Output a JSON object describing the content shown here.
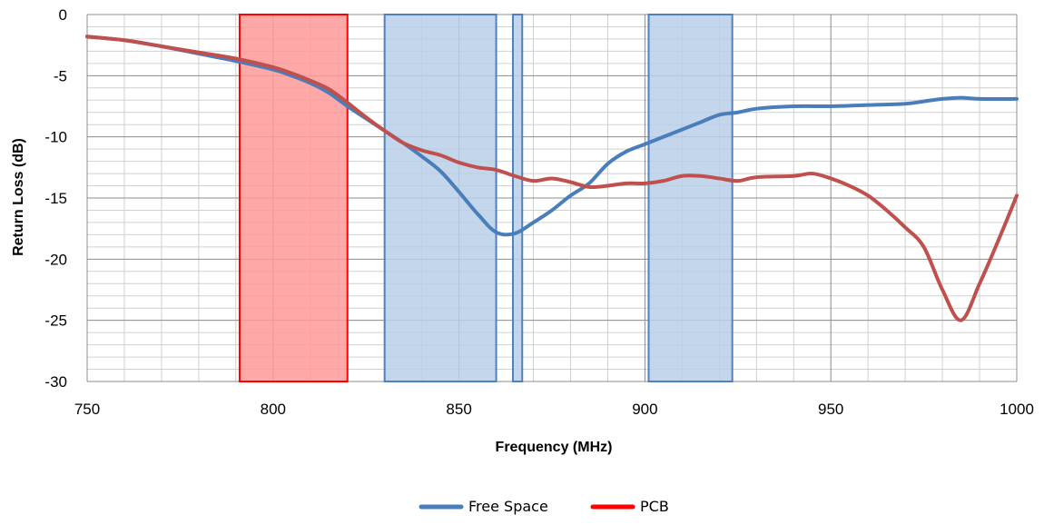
{
  "chart_data": {
    "type": "line",
    "title": "",
    "xlabel": "Frequency (MHz)",
    "ylabel": "Return Loss (dB)",
    "xlim": [
      750,
      1000
    ],
    "ylim": [
      -30,
      0
    ],
    "x_ticks": [
      750,
      800,
      850,
      900,
      950,
      1000
    ],
    "y_ticks": [
      0,
      -5,
      -10,
      -15,
      -20,
      -25,
      -30
    ],
    "x_tick_labels": [
      "750",
      "800",
      "850",
      "900",
      "950",
      "1000"
    ],
    "y_tick_labels": [
      "0",
      "-5",
      "-10",
      "-15",
      "-20",
      "-25",
      "-30"
    ],
    "grid": true,
    "legend_position": "bottom",
    "bands": [
      {
        "x_start": 791,
        "x_end": 820,
        "color": "#ff0000",
        "fill": "#ff9999"
      },
      {
        "x_start": 830,
        "x_end": 860,
        "color": "#4f81bd",
        "fill": "#b8cfe8"
      },
      {
        "x_start": 864.5,
        "x_end": 867,
        "color": "#4f81bd",
        "fill": "#b8cfe8"
      },
      {
        "x_start": 901,
        "x_end": 923.5,
        "color": "#4f81bd",
        "fill": "#b8cfe8"
      }
    ],
    "series": [
      {
        "name": "Free Space",
        "color": "#4a7ebb",
        "x": [
          750,
          760,
          770,
          780,
          790,
          800,
          805,
          810,
          815,
          820,
          825,
          830,
          835,
          840,
          845,
          850,
          855,
          860,
          865,
          870,
          875,
          880,
          885,
          890,
          895,
          900,
          905,
          910,
          915,
          920,
          925,
          930,
          940,
          950,
          960,
          970,
          975,
          980,
          985,
          990,
          1000
        ],
        "y": [
          -1.8,
          -2.1,
          -2.6,
          -3.2,
          -3.8,
          -4.5,
          -5.0,
          -5.6,
          -6.4,
          -7.5,
          -8.5,
          -9.5,
          -10.5,
          -11.6,
          -12.8,
          -14.5,
          -16.3,
          -17.8,
          -17.9,
          -17.0,
          -16.0,
          -14.8,
          -13.8,
          -12.2,
          -11.2,
          -10.6,
          -10.0,
          -9.4,
          -8.8,
          -8.2,
          -8.0,
          -7.7,
          -7.5,
          -7.5,
          -7.4,
          -7.3,
          -7.1,
          -6.9,
          -6.8,
          -6.9,
          -6.9
        ]
      },
      {
        "name": "PCB",
        "color": "#c0504d",
        "x": [
          750,
          760,
          770,
          780,
          790,
          800,
          805,
          810,
          815,
          820,
          825,
          830,
          835,
          840,
          845,
          850,
          855,
          860,
          865,
          870,
          875,
          880,
          885,
          890,
          895,
          900,
          905,
          910,
          915,
          920,
          925,
          930,
          940,
          945,
          950,
          955,
          960,
          965,
          970,
          975,
          980,
          985,
          990,
          995,
          1000
        ],
        "y": [
          -1.8,
          -2.1,
          -2.6,
          -3.1,
          -3.6,
          -4.3,
          -4.8,
          -5.4,
          -6.1,
          -7.2,
          -8.4,
          -9.5,
          -10.5,
          -11.1,
          -11.5,
          -12.1,
          -12.5,
          -12.7,
          -13.2,
          -13.6,
          -13.4,
          -13.7,
          -14.1,
          -14.0,
          -13.8,
          -13.8,
          -13.6,
          -13.2,
          -13.2,
          -13.4,
          -13.6,
          -13.3,
          -13.2,
          -13.0,
          -13.4,
          -14.0,
          -14.8,
          -16.0,
          -17.4,
          -19.0,
          -22.5,
          -25.0,
          -22.0,
          -18.5,
          -14.8
        ]
      }
    ]
  }
}
